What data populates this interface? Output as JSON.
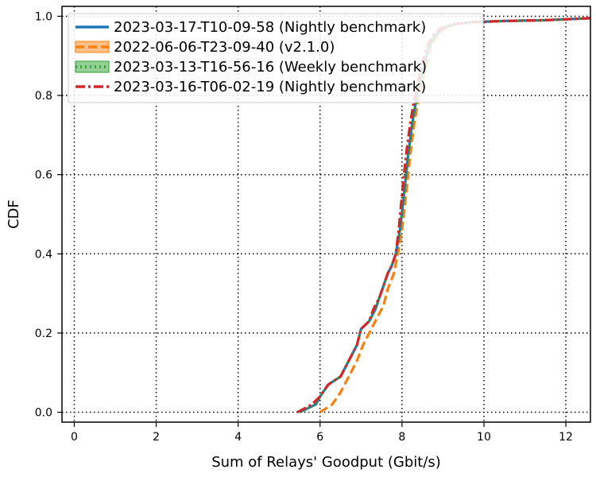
{
  "chart_data": {
    "type": "line",
    "title": "",
    "xlabel": "Sum of Relays' Goodput (Gbit/s)",
    "ylabel": "CDF",
    "xlim": [
      -0.3,
      12.6
    ],
    "ylim": [
      -0.025,
      1.025
    ],
    "xticks": [
      0,
      2,
      4,
      6,
      8,
      10,
      12
    ],
    "yticks": [
      0.0,
      0.2,
      0.4,
      0.6,
      0.8,
      1.0
    ],
    "grid": true,
    "legend_position": "top-left",
    "series": [
      {
        "name": "2023-03-17-T10-09-58 (Nightly benchmark)",
        "color": "#1f77b4",
        "style": "solid",
        "x": [
          5.5,
          5.9,
          6.0,
          6.2,
          6.5,
          6.7,
          6.9,
          7.0,
          7.2,
          7.35,
          7.45,
          7.55,
          7.65,
          7.75,
          7.85,
          7.95,
          8.05,
          8.15,
          8.25,
          8.35,
          8.45,
          8.55,
          8.65,
          8.8,
          9.0,
          9.3,
          9.7,
          10.5,
          11.5,
          12.6
        ],
        "y": [
          0.0,
          0.02,
          0.04,
          0.07,
          0.09,
          0.13,
          0.17,
          0.21,
          0.23,
          0.26,
          0.29,
          0.32,
          0.35,
          0.37,
          0.4,
          0.46,
          0.55,
          0.65,
          0.73,
          0.79,
          0.84,
          0.88,
          0.92,
          0.95,
          0.97,
          0.98,
          0.985,
          0.988,
          0.99,
          0.995
        ]
      },
      {
        "name": "2022-06-06-T23-09-40 (v2.1.0)",
        "color": "#ff7f0e",
        "style": "dashed",
        "x": [
          6.0,
          6.3,
          6.5,
          6.7,
          6.9,
          7.05,
          7.25,
          7.4,
          7.55,
          7.65,
          7.8,
          7.9,
          8.0,
          8.1,
          8.2,
          8.3,
          8.4,
          8.5,
          8.6,
          8.7,
          8.85,
          9.05,
          9.3,
          9.7,
          10.5,
          11.5,
          12.6
        ],
        "y": [
          0.0,
          0.02,
          0.05,
          0.09,
          0.13,
          0.17,
          0.21,
          0.24,
          0.27,
          0.31,
          0.35,
          0.4,
          0.46,
          0.55,
          0.65,
          0.73,
          0.79,
          0.84,
          0.88,
          0.92,
          0.95,
          0.97,
          0.98,
          0.985,
          0.988,
          0.99,
          0.995
        ]
      },
      {
        "name": "2023-03-13-T16-56-16 (Weekly benchmark)",
        "color": "#2ca02c",
        "style": "dotted",
        "x": [
          5.5,
          5.9,
          6.0,
          6.2,
          6.5,
          6.7,
          6.9,
          7.0,
          7.2,
          7.35,
          7.45,
          7.55,
          7.65,
          7.75,
          7.85,
          7.95,
          8.05,
          8.15,
          8.25,
          8.35,
          8.45,
          8.55,
          8.65,
          8.8,
          9.0,
          9.3,
          9.7,
          10.5,
          11.5,
          12.6
        ],
        "y": [
          0.0,
          0.02,
          0.04,
          0.07,
          0.09,
          0.13,
          0.17,
          0.21,
          0.23,
          0.26,
          0.29,
          0.32,
          0.35,
          0.37,
          0.4,
          0.46,
          0.55,
          0.65,
          0.73,
          0.79,
          0.84,
          0.88,
          0.92,
          0.95,
          0.97,
          0.98,
          0.985,
          0.988,
          0.99,
          0.995
        ]
      },
      {
        "name": "2023-03-16-T06-02-19 (Nightly benchmark)",
        "color": "#d62728",
        "style": "dashdot",
        "x": [
          5.45,
          5.8,
          6.0,
          6.2,
          6.5,
          6.7,
          6.9,
          7.0,
          7.2,
          7.3,
          7.45,
          7.55,
          7.65,
          7.75,
          7.85,
          7.92,
          8.0,
          8.1,
          8.2,
          8.3,
          8.4,
          8.5,
          8.6,
          8.75,
          8.95,
          9.25,
          9.7,
          10.5,
          11.5,
          12.6
        ],
        "y": [
          0.0,
          0.02,
          0.04,
          0.07,
          0.09,
          0.13,
          0.17,
          0.21,
          0.23,
          0.26,
          0.29,
          0.32,
          0.35,
          0.37,
          0.4,
          0.46,
          0.55,
          0.65,
          0.73,
          0.79,
          0.84,
          0.88,
          0.92,
          0.95,
          0.97,
          0.98,
          0.985,
          0.988,
          0.99,
          0.995
        ]
      }
    ]
  }
}
